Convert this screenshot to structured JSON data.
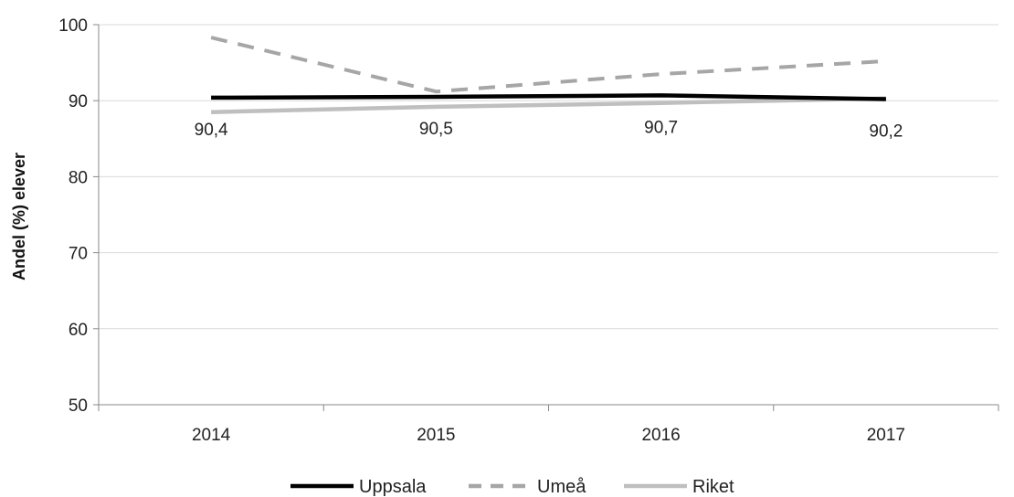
{
  "chart_data": {
    "type": "line",
    "title": "",
    "xlabel": "",
    "ylabel": "Andel (%) elever",
    "categories": [
      "2014",
      "2015",
      "2016",
      "2017"
    ],
    "ylim": [
      50,
      100
    ],
    "yticks": [
      50,
      60,
      70,
      80,
      90,
      100
    ],
    "grid": true,
    "legend_position": "bottom",
    "series": [
      {
        "name": "Uppsala",
        "values": [
          90.4,
          90.5,
          90.7,
          90.2
        ],
        "color": "#000000",
        "style": "solid",
        "data_labels": [
          "90,4",
          "90,5",
          "90,7",
          "90,2"
        ]
      },
      {
        "name": "Umeå",
        "values": [
          98.3,
          91.2,
          93.5,
          95.2
        ],
        "color": "#a6a6a6",
        "style": "dashed"
      },
      {
        "name": "Riket",
        "values": [
          88.5,
          89.2,
          89.7,
          90.3
        ],
        "color": "#bfbfbf",
        "style": "solid"
      }
    ]
  }
}
